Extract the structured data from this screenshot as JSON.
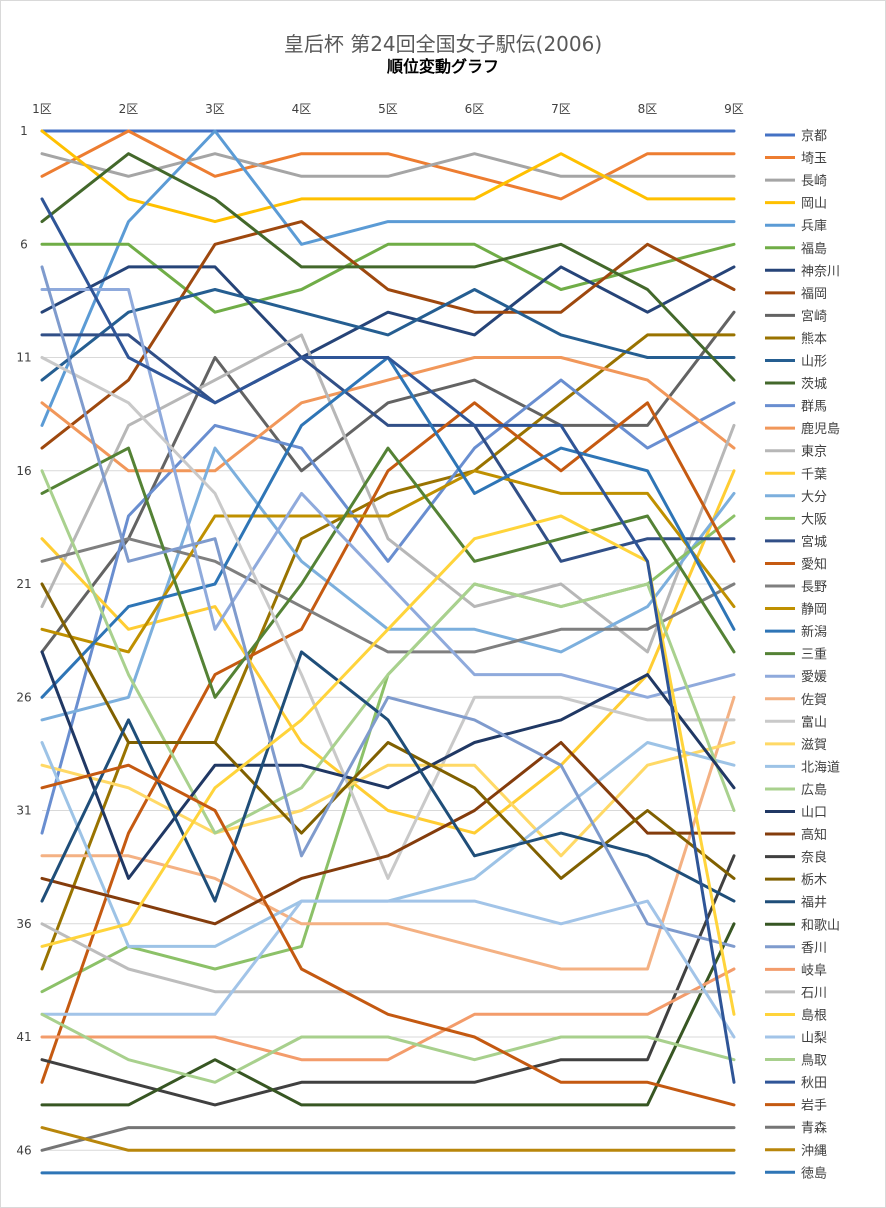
{
  "chart_data": {
    "type": "line",
    "title": "皇后杯 第24回全国女子駅伝(2006)",
    "subtitle": "順位変動グラフ",
    "x": [
      "1区",
      "2区",
      "3区",
      "4区",
      "5区",
      "6区",
      "7区",
      "8区",
      "9区"
    ],
    "y_ticks": [
      1,
      6,
      11,
      16,
      21,
      26,
      31,
      36,
      41,
      46
    ],
    "ylim": [
      1,
      47
    ],
    "y_reversed": true,
    "grid": true,
    "legend_position": "right",
    "series": [
      {
        "name": "京都",
        "color": "#4472C4",
        "values": [
          1,
          1,
          1,
          1,
          1,
          1,
          1,
          1,
          1
        ]
      },
      {
        "name": "埼玉",
        "color": "#ED7D31",
        "values": [
          3,
          1,
          3,
          2,
          2,
          3,
          4,
          2,
          2
        ]
      },
      {
        "name": "長崎",
        "color": "#A5A5A5",
        "values": [
          2,
          3,
          2,
          3,
          3,
          2,
          3,
          3,
          3
        ]
      },
      {
        "name": "岡山",
        "color": "#FFC000",
        "values": [
          1,
          4,
          5,
          4,
          4,
          4,
          2,
          4,
          4
        ]
      },
      {
        "name": "兵庫",
        "color": "#5B9BD5",
        "values": [
          14,
          5,
          1,
          6,
          5,
          5,
          5,
          5,
          5
        ]
      },
      {
        "name": "福島",
        "color": "#70AD47",
        "values": [
          6,
          6,
          9,
          8,
          6,
          6,
          8,
          7,
          6
        ]
      },
      {
        "name": "神奈川",
        "color": "#264478",
        "values": [
          9,
          7,
          7,
          11,
          9,
          10,
          7,
          9,
          7
        ]
      },
      {
        "name": "福岡",
        "color": "#9E480E",
        "values": [
          15,
          12,
          6,
          5,
          8,
          9,
          9,
          6,
          8
        ]
      },
      {
        "name": "宮崎",
        "color": "#636363",
        "values": [
          24,
          19,
          11,
          16,
          13,
          12,
          14,
          14,
          9
        ]
      },
      {
        "name": "熊本",
        "color": "#997300",
        "values": [
          38,
          28,
          28,
          19,
          17,
          16,
          13,
          10,
          10
        ]
      },
      {
        "name": "山形",
        "color": "#255E91",
        "values": [
          12,
          9,
          8,
          9,
          10,
          8,
          10,
          11,
          11
        ]
      },
      {
        "name": "茨城",
        "color": "#43682B",
        "values": [
          5,
          2,
          4,
          7,
          7,
          7,
          6,
          8,
          12
        ]
      },
      {
        "name": "群馬",
        "color": "#698ED0",
        "values": [
          32,
          18,
          14,
          15,
          20,
          15,
          12,
          15,
          13
        ]
      },
      {
        "name": "鹿児島",
        "color": "#F1975A",
        "values": [
          13,
          16,
          16,
          13,
          12,
          11,
          11,
          12,
          15
        ]
      },
      {
        "name": "東京",
        "color": "#B7B7B7",
        "values": [
          22,
          14,
          12,
          10,
          19,
          22,
          21,
          24,
          14
        ]
      },
      {
        "name": "千葉",
        "color": "#FFCD33",
        "values": [
          19,
          23,
          22,
          28,
          31,
          32,
          29,
          25,
          16
        ]
      },
      {
        "name": "大分",
        "color": "#7CAFDD",
        "values": [
          27,
          26,
          15,
          20,
          23,
          23,
          24,
          22,
          17
        ]
      },
      {
        "name": "大阪",
        "color": "#8CC168",
        "values": [
          39,
          37,
          38,
          37,
          25,
          21,
          22,
          21,
          18
        ]
      },
      {
        "name": "宮城",
        "color": "#314F87",
        "values": [
          10,
          10,
          13,
          11,
          14,
          14,
          20,
          19,
          19
        ]
      },
      {
        "name": "愛知",
        "color": "#C55A11",
        "values": [
          43,
          32,
          25,
          23,
          16,
          13,
          16,
          13,
          20
        ]
      },
      {
        "name": "長野",
        "color": "#7F7F7F",
        "values": [
          20,
          19,
          20,
          22,
          24,
          24,
          23,
          23,
          21
        ]
      },
      {
        "name": "静岡",
        "color": "#BF9000",
        "values": [
          23,
          24,
          18,
          18,
          18,
          16,
          17,
          17,
          22
        ]
      },
      {
        "name": "新潟",
        "color": "#2E75B6",
        "values": [
          26,
          22,
          21,
          14,
          11,
          17,
          15,
          16,
          23
        ]
      },
      {
        "name": "三重",
        "color": "#548235",
        "values": [
          17,
          15,
          26,
          21,
          15,
          20,
          19,
          18,
          24
        ]
      },
      {
        "name": "愛媛",
        "color": "#8FAADC",
        "values": [
          8,
          8,
          23,
          17,
          21,
          25,
          25,
          26,
          25
        ]
      },
      {
        "name": "佐賀",
        "color": "#F4B183",
        "values": [
          33,
          33,
          34,
          36,
          36,
          37,
          38,
          38,
          26
        ]
      },
      {
        "name": "富山",
        "color": "#C9C9C9",
        "values": [
          11,
          13,
          17,
          25,
          34,
          26,
          26,
          27,
          27
        ]
      },
      {
        "name": "滋賀",
        "color": "#FFD966",
        "values": [
          29,
          30,
          32,
          31,
          29,
          29,
          33,
          29,
          28
        ]
      },
      {
        "name": "北海道",
        "color": "#9DC3E6",
        "values": [
          28,
          37,
          37,
          35,
          35,
          34,
          31,
          28,
          29
        ]
      },
      {
        "name": "広島",
        "color": "#A9D18E",
        "values": [
          16,
          25,
          32,
          30,
          25,
          21,
          22,
          21,
          31
        ]
      },
      {
        "name": "山口",
        "color": "#203864",
        "values": [
          24,
          34,
          29,
          29,
          30,
          28,
          27,
          25,
          30
        ]
      },
      {
        "name": "高知",
        "color": "#843C0C",
        "values": [
          34,
          35,
          36,
          34,
          33,
          31,
          28,
          32,
          32
        ]
      },
      {
        "name": "奈良",
        "color": "#404040",
        "values": [
          42,
          43,
          44,
          43,
          43,
          43,
          42,
          42,
          33
        ]
      },
      {
        "name": "栃木",
        "color": "#806000",
        "values": [
          21,
          28,
          28,
          32,
          28,
          30,
          34,
          31,
          34
        ]
      },
      {
        "name": "福井",
        "color": "#1F4E79",
        "values": [
          35,
          27,
          35,
          24,
          27,
          33,
          32,
          33,
          35
        ]
      },
      {
        "name": "和歌山",
        "color": "#375623",
        "values": [
          44,
          44,
          42,
          44,
          44,
          44,
          44,
          44,
          36
        ]
      },
      {
        "name": "香川",
        "color": "#7F9BCD",
        "values": [
          7,
          20,
          19,
          33,
          26,
          27,
          29,
          36,
          37
        ]
      },
      {
        "name": "岐阜",
        "color": "#F39C6B",
        "values": [
          41,
          41,
          41,
          42,
          42,
          40,
          40,
          40,
          38
        ]
      },
      {
        "name": "石川",
        "color": "#BDBDBD",
        "values": [
          36,
          38,
          39,
          39,
          39,
          39,
          39,
          39,
          39
        ]
      },
      {
        "name": "島根",
        "color": "#FFD43B",
        "values": [
          37,
          36,
          30,
          27,
          23,
          19,
          18,
          20,
          40
        ]
      },
      {
        "name": "山梨",
        "color": "#A2C4E8",
        "values": [
          40,
          40,
          40,
          35,
          35,
          35,
          36,
          35,
          41
        ]
      },
      {
        "name": "鳥取",
        "color": "#A8D08D",
        "values": [
          40,
          42,
          43,
          41,
          41,
          42,
          41,
          41,
          42
        ]
      },
      {
        "name": "秋田",
        "color": "#2F5597",
        "values": [
          4,
          11,
          13,
          11,
          11,
          14,
          14,
          20,
          43
        ]
      },
      {
        "name": "岩手",
        "color": "#C45911",
        "values": [
          30,
          29,
          31,
          38,
          40,
          41,
          43,
          43,
          44
        ]
      },
      {
        "name": "青森",
        "color": "#757575",
        "values": [
          46,
          45,
          45,
          45,
          45,
          45,
          45,
          45,
          45
        ]
      },
      {
        "name": "沖縄",
        "color": "#B8860B",
        "values": [
          45,
          46,
          46,
          46,
          46,
          46,
          46,
          46,
          46
        ]
      },
      {
        "name": "徳島",
        "color": "#2E75B6",
        "values": [
          47,
          47,
          47,
          47,
          47,
          47,
          47,
          47,
          47
        ]
      }
    ]
  }
}
